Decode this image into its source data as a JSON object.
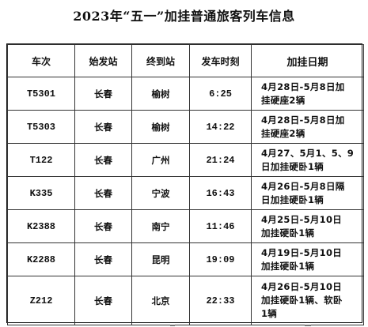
{
  "document": {
    "title": "2023年“五一”加挂普通旅客列车信息"
  },
  "table": {
    "headers": {
      "train_no": "车次",
      "origin": "始发站",
      "destination": "终到站",
      "departure": "发车时刻",
      "dates": "加挂日期"
    },
    "rows": [
      {
        "train_no": "T5301",
        "origin": "长春",
        "destination": "榆树",
        "departure": "6:25",
        "dates_line1": "4月28日-5月8日加",
        "dates_line2": "挂硬座2辆",
        "dates_line3": ""
      },
      {
        "train_no": "T5303",
        "origin": "长春",
        "destination": "榆树",
        "departure": "14:22",
        "dates_line1": "4月28日-5月8日加",
        "dates_line2": "挂硬座2辆",
        "dates_line3": ""
      },
      {
        "train_no": "T122",
        "origin": "长春",
        "destination": "广州",
        "departure": "21:24",
        "dates_line1": "4月27、5月1、5、9",
        "dates_line2": "日加挂硬卧1辆",
        "dates_line3": ""
      },
      {
        "train_no": "K335",
        "origin": "长春",
        "destination": "宁波",
        "departure": "16:43",
        "dates_line1": "4月26日-5月8日隔",
        "dates_line2": "日加挂硬卧1辆",
        "dates_line3": ""
      },
      {
        "train_no": "K2388",
        "origin": "长春",
        "destination": "南宁",
        "departure": "11:46",
        "dates_line1": "4月25日-5月10日",
        "dates_line2": "加挂硬卧1辆",
        "dates_line3": ""
      },
      {
        "train_no": "K2288",
        "origin": "长春",
        "destination": "昆明",
        "departure": "19:09",
        "dates_line1": "4月19日-5月10日",
        "dates_line2": "加挂硬卧1辆",
        "dates_line3": ""
      },
      {
        "train_no": "Z212",
        "origin": "长春",
        "destination": "北京",
        "departure": "22:33",
        "dates_line1": "4月26日-5月10日",
        "dates_line2": "加挂硬卧1辆、软卧",
        "dates_line3": "1辆"
      }
    ]
  }
}
